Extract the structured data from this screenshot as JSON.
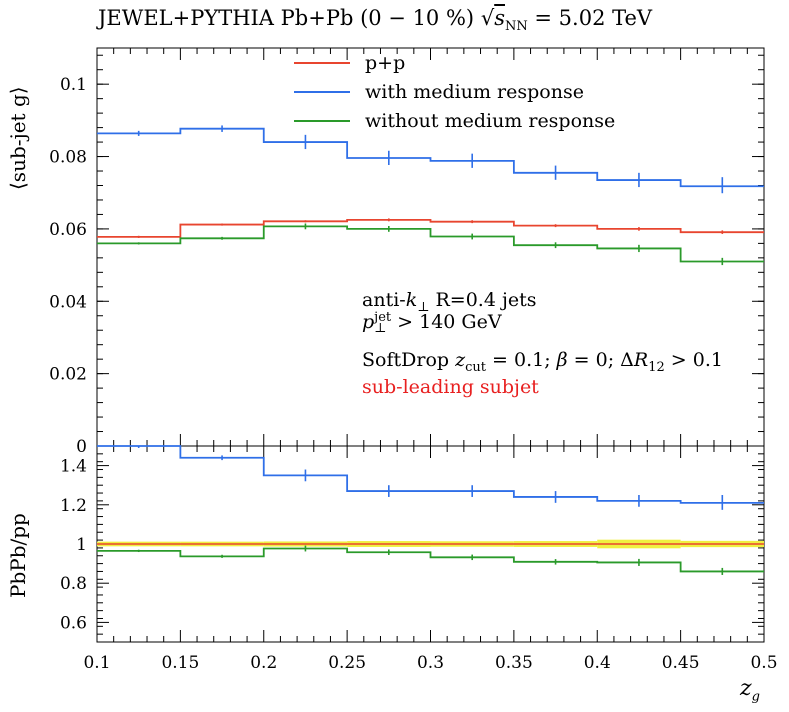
{
  "title": "JEWEL+PYTHIA Pb+Pb (0 − 10 %) √s_NN = 5.02 TeV",
  "title_parts": {
    "pre": "JEWEL+PYTHIA Pb+Pb (0 − 10 %)",
    "sqrt": "√",
    "s": "s",
    "nn": "NN",
    "post": " = 5.02 TeV"
  },
  "annotations": {
    "line1_pre": "anti-",
    "line1_k": "k",
    "line1_perp": "⊥",
    "line1_post": " R=0.4 jets",
    "line2_p": "p",
    "line2_sup": "jet",
    "line2_sub": "⊥",
    "line2_post": " > 140 GeV",
    "line3_pre": "SoftDrop ",
    "line3_z": "z",
    "line3_zsub": "cut",
    "line3_mid": " = 0.1; ",
    "line3_beta": "β",
    "line3_mid2": " = 0; Δ",
    "line3_R": "R",
    "line3_Rsub": "12",
    "line3_post": " > 0.1",
    "line4": "sub-leading subjet"
  },
  "colors": {
    "pp": "#e8452f",
    "with": "#2f6fe8",
    "without": "#2a9a2a",
    "band": "#f0f040",
    "annotation_red": "#e82020"
  },
  "chart_data": [
    {
      "type": "line",
      "panel": "top",
      "title": "JEWEL+PYTHIA Pb+Pb (0 − 10 %) √s_NN = 5.02 TeV",
      "ylabel": "⟨sub-jet g⟩",
      "xlim": [
        0.1,
        0.5
      ],
      "ylim": [
        0,
        0.11
      ],
      "x_edges": [
        0.1,
        0.15,
        0.2,
        0.25,
        0.3,
        0.35,
        0.4,
        0.45,
        0.5
      ],
      "ytick_labels": [
        "0",
        "0.02",
        "0.04",
        "0.06",
        "0.08",
        "0.1"
      ],
      "ytick_values": [
        0,
        0.02,
        0.04,
        0.06,
        0.08,
        0.1
      ],
      "legend_position": "top-center",
      "series": [
        {
          "name": "p+p",
          "color": "#e8452f",
          "values": [
            0.0578,
            0.0612,
            0.0621,
            0.0625,
            0.062,
            0.0609,
            0.06,
            0.0591
          ],
          "errors": [
            0.0003,
            0.0003,
            0.0003,
            0.0004,
            0.0004,
            0.0004,
            0.0005,
            0.0005
          ]
        },
        {
          "name": "with medium response",
          "color": "#2f6fe8",
          "values": [
            0.0864,
            0.0877,
            0.084,
            0.0796,
            0.0788,
            0.0755,
            0.0735,
            0.0718
          ],
          "errors": [
            0.0007,
            0.0009,
            0.002,
            0.002,
            0.002,
            0.002,
            0.002,
            0.0025
          ]
        },
        {
          "name": "without medium response",
          "color": "#2a9a2a",
          "values": [
            0.056,
            0.0574,
            0.0607,
            0.06,
            0.0579,
            0.0555,
            0.0546,
            0.051
          ],
          "errors": [
            0.0003,
            0.0004,
            0.0008,
            0.0008,
            0.0008,
            0.0008,
            0.001,
            0.001
          ]
        }
      ]
    },
    {
      "type": "line",
      "panel": "bottom",
      "ylabel": "PbPb/pp",
      "xlabel": "z_g",
      "xlim": [
        0.1,
        0.5
      ],
      "ylim": [
        0.5,
        1.5
      ],
      "x_edges": [
        0.1,
        0.15,
        0.2,
        0.25,
        0.3,
        0.35,
        0.4,
        0.45,
        0.5
      ],
      "xtick_labels": [
        "0.1",
        "0.15",
        "0.2",
        "0.25",
        "0.3",
        "0.35",
        "0.4",
        "0.45",
        "0.5"
      ],
      "xtick_values": [
        0.1,
        0.15,
        0.2,
        0.25,
        0.3,
        0.35,
        0.4,
        0.45,
        0.5
      ],
      "ytick_labels": [
        "0.6",
        "0.8",
        "1",
        "1.2",
        "1.4"
      ],
      "ytick_values": [
        0.6,
        0.8,
        1.0,
        1.2,
        1.4
      ],
      "band": {
        "center": 1.0,
        "halfwidth": [
          0.012,
          0.012,
          0.013,
          0.015,
          0.014,
          0.015,
          0.022,
          0.016
        ]
      },
      "series": [
        {
          "name": "with medium response",
          "color": "#2f6fe8",
          "values": [
            1.5,
            1.44,
            1.35,
            1.27,
            1.27,
            1.24,
            1.22,
            1.21
          ],
          "errors": [
            0.01,
            0.012,
            0.03,
            0.03,
            0.03,
            0.03,
            0.03,
            0.04
          ]
        },
        {
          "name": "without medium response",
          "color": "#2a9a2a",
          "values": [
            0.965,
            0.937,
            0.977,
            0.958,
            0.932,
            0.909,
            0.906,
            0.86
          ],
          "errors": [
            0.006,
            0.008,
            0.015,
            0.014,
            0.014,
            0.014,
            0.018,
            0.018
          ]
        }
      ]
    }
  ]
}
